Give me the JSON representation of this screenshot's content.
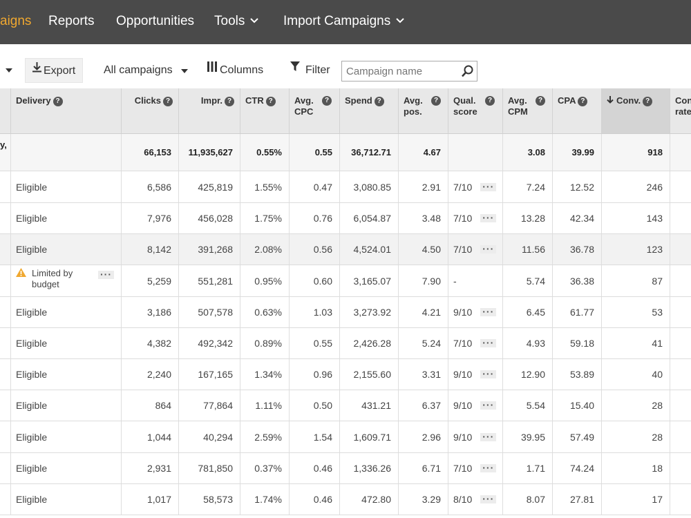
{
  "nav": {
    "items": [
      {
        "label": "aigns",
        "active": true,
        "dropdown": false
      },
      {
        "label": "Reports",
        "active": false,
        "dropdown": false
      },
      {
        "label": "Opportunities",
        "active": false,
        "dropdown": false
      },
      {
        "label": "Tools",
        "active": false,
        "dropdown": true
      },
      {
        "label": "Import Campaigns",
        "active": false,
        "dropdown": true
      }
    ]
  },
  "toolbar": {
    "export_label": "Export",
    "campaign_filter": "All campaigns",
    "columns_label": "Columns",
    "filter_label": "Filter",
    "search_placeholder": "Campaign name"
  },
  "table": {
    "headers": {
      "delivery": "Delivery",
      "clicks": "Clicks",
      "impr": "Impr.",
      "ctr": "CTR",
      "avg_cpc": "Avg. CPC",
      "spend": "Spend",
      "avg_pos": "Avg. pos.",
      "qual_score": "Qual. score",
      "avg_cpm": "Avg. CPM",
      "cpa": "CPA",
      "conv": "Conv.",
      "conv_rate": "Conv. rate"
    },
    "totals": {
      "first": "y,",
      "clicks": "66,153",
      "impr": "11,935,627",
      "ctr": "0.55%",
      "avg_cpc": "0.55",
      "spend": "36,712.71",
      "avg_pos": "4.67",
      "avg_cpm": "3.08",
      "cpa": "39.99",
      "conv": "918"
    },
    "rows": [
      {
        "delivery": "Eligible",
        "clicks": "6,586",
        "impr": "425,819",
        "ctr": "1.55%",
        "avg_cpc": "0.47",
        "spend": "3,080.85",
        "avg_pos": "2.91",
        "qual": "7/10",
        "avg_cpm": "7.24",
        "cpa": "12.52",
        "conv": "246"
      },
      {
        "delivery": "Eligible",
        "clicks": "7,976",
        "impr": "456,028",
        "ctr": "1.75%",
        "avg_cpc": "0.76",
        "spend": "6,054.87",
        "avg_pos": "3.48",
        "qual": "7/10",
        "avg_cpm": "13.28",
        "cpa": "42.34",
        "conv": "143"
      },
      {
        "delivery": "Eligible",
        "clicks": "8,142",
        "impr": "391,268",
        "ctr": "2.08%",
        "avg_cpc": "0.56",
        "spend": "4,524.01",
        "avg_pos": "4.50",
        "qual": "7/10",
        "avg_cpm": "11.56",
        "cpa": "36.78",
        "conv": "123"
      },
      {
        "delivery": "Limited by budget",
        "warning": true,
        "clicks": "5,259",
        "impr": "551,281",
        "ctr": "0.95%",
        "avg_cpc": "0.60",
        "spend": "3,165.07",
        "avg_pos": "7.90",
        "qual": "-",
        "avg_cpm": "5.74",
        "cpa": "36.38",
        "conv": "87"
      },
      {
        "delivery": "Eligible",
        "clicks": "3,186",
        "impr": "507,578",
        "ctr": "0.63%",
        "avg_cpc": "1.03",
        "spend": "3,273.92",
        "avg_pos": "4.21",
        "qual": "9/10",
        "avg_cpm": "6.45",
        "cpa": "61.77",
        "conv": "53"
      },
      {
        "delivery": "Eligible",
        "clicks": "4,382",
        "impr": "492,342",
        "ctr": "0.89%",
        "avg_cpc": "0.55",
        "spend": "2,426.28",
        "avg_pos": "5.24",
        "qual": "7/10",
        "avg_cpm": "4.93",
        "cpa": "59.18",
        "conv": "41"
      },
      {
        "delivery": "Eligible",
        "clicks": "2,240",
        "impr": "167,165",
        "ctr": "1.34%",
        "avg_cpc": "0.96",
        "spend": "2,155.60",
        "avg_pos": "3.31",
        "qual": "9/10",
        "avg_cpm": "12.90",
        "cpa": "53.89",
        "conv": "40"
      },
      {
        "delivery": "Eligible",
        "clicks": "864",
        "impr": "77,864",
        "ctr": "1.11%",
        "avg_cpc": "0.50",
        "spend": "431.21",
        "avg_pos": "6.37",
        "qual": "9/10",
        "avg_cpm": "5.54",
        "cpa": "15.40",
        "conv": "28"
      },
      {
        "delivery": "Eligible",
        "clicks": "1,044",
        "impr": "40,294",
        "ctr": "2.59%",
        "avg_cpc": "1.54",
        "spend": "1,609.71",
        "avg_pos": "2.96",
        "qual": "9/10",
        "avg_cpm": "39.95",
        "cpa": "57.49",
        "conv": "28"
      },
      {
        "delivery": "Eligible",
        "clicks": "2,931",
        "impr": "781,850",
        "ctr": "0.37%",
        "avg_cpc": "0.46",
        "spend": "1,336.26",
        "avg_pos": "6.71",
        "qual": "7/10",
        "avg_cpm": "1.71",
        "cpa": "74.24",
        "conv": "18"
      },
      {
        "delivery": "Eligible",
        "clicks": "1,017",
        "impr": "58,573",
        "ctr": "1.74%",
        "avg_cpc": "0.46",
        "spend": "472.80",
        "avg_pos": "3.29",
        "qual": "8/10",
        "avg_cpm": "8.07",
        "cpa": "27.81",
        "conv": "17"
      }
    ]
  },
  "colors": {
    "nav_bg": "#4a4a4a",
    "nav_active": "#f0a830",
    "header_bg": "#e8e8e8",
    "sorted_header_bg": "#d4d4d4",
    "warning": "#f0a830"
  }
}
